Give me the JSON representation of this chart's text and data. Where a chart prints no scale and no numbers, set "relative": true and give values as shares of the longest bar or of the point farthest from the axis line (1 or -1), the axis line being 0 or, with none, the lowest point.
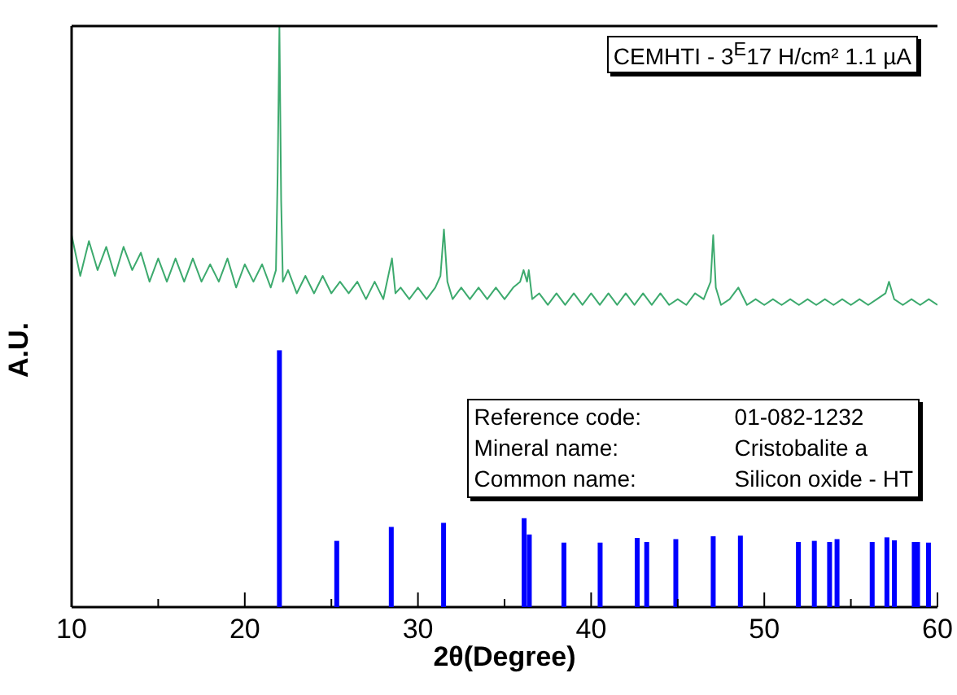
{
  "chart_data": {
    "type": "line",
    "relative": true,
    "xlabel": "2θ(Degree)",
    "ylabel": "A.U.",
    "xlim": [
      10,
      60
    ],
    "xticks": [
      10,
      {
        "value": 15,
        "label": null
      },
      20,
      {
        "value": 25,
        "label": null
      },
      30,
      {
        "value": 35,
        "label": null
      },
      40,
      {
        "value": 45,
        "label": null
      },
      50,
      {
        "value": 55,
        "label": null
      },
      60
    ],
    "tick_labels": "x",
    "annotations": [
      "CEMHTI - 3$^{E}$17 H/cm² 1.1 µA",
      "Reference code:",
      "01-082-1232",
      "Mineral name:",
      "Cristobalite a",
      "Common name:",
      "Silicon oxide - HT"
    ],
    "series": [
      {
        "color": "#3daa6e",
        "x": [
          10,
          10.5,
          11,
          11.5,
          12,
          12.5,
          13,
          13.5,
          14,
          14.5,
          15,
          15.5,
          16,
          16.5,
          17,
          17.5,
          18,
          18.5,
          19,
          19.5,
          20,
          20.5,
          21,
          21.5,
          21.8,
          21.9,
          22.0,
          22.1,
          22.2,
          22.5,
          23,
          23.5,
          24,
          24.5,
          25,
          25.5,
          26,
          26.5,
          27,
          27.5,
          28,
          28.5,
          28.7,
          29,
          29.5,
          30,
          30.5,
          31,
          31.3,
          31.5,
          31.7,
          32,
          32.5,
          33,
          33.5,
          34,
          34.5,
          35,
          35.5,
          35.9,
          36.1,
          36.3,
          36.4,
          36.6,
          37,
          37.5,
          38,
          38.5,
          39,
          39.5,
          40,
          40.5,
          41,
          41.5,
          42,
          42.5,
          43,
          43.5,
          44,
          44.5,
          45,
          45.5,
          46,
          46.5,
          46.9,
          47.05,
          47.2,
          47.5,
          48,
          48.5,
          49,
          49.5,
          50,
          50.5,
          51,
          51.5,
          52,
          52.5,
          53,
          53.5,
          54,
          54.5,
          55,
          55.5,
          56,
          56.5,
          57,
          57.2,
          57.5,
          58,
          58.5,
          59,
          59.5,
          60
        ],
        "values": [
          0.64,
          0.57,
          0.63,
          0.58,
          0.62,
          0.57,
          0.62,
          0.58,
          0.61,
          0.56,
          0.6,
          0.56,
          0.6,
          0.56,
          0.6,
          0.56,
          0.59,
          0.56,
          0.6,
          0.55,
          0.59,
          0.56,
          0.59,
          0.55,
          0.58,
          0.75,
          1,
          0.7,
          0.56,
          0.58,
          0.54,
          0.57,
          0.54,
          0.57,
          0.54,
          0.56,
          0.54,
          0.56,
          0.53,
          0.56,
          0.53,
          0.6,
          0.54,
          0.55,
          0.53,
          0.55,
          0.53,
          0.55,
          0.57,
          0.65,
          0.56,
          0.53,
          0.55,
          0.53,
          0.55,
          0.53,
          0.55,
          0.53,
          0.55,
          0.56,
          0.58,
          0.56,
          0.58,
          0.53,
          0.54,
          0.52,
          0.54,
          0.52,
          0.54,
          0.52,
          0.54,
          0.52,
          0.54,
          0.52,
          0.54,
          0.52,
          0.54,
          0.52,
          0.54,
          0.52,
          0.53,
          0.52,
          0.54,
          0.53,
          0.56,
          0.64,
          0.55,
          0.52,
          0.53,
          0.55,
          0.52,
          0.53,
          0.52,
          0.53,
          0.52,
          0.53,
          0.52,
          0.53,
          0.52,
          0.53,
          0.52,
          0.53,
          0.52,
          0.53,
          0.52,
          0.53,
          0.54,
          0.56,
          0.53,
          0.52,
          0.53,
          0.52,
          0.53,
          0.52
        ]
      },
      {
        "type": "bar",
        "color": "#0000ff",
        "x": [
          22.0,
          25.31,
          28.46,
          31.48,
          36.13,
          36.43,
          38.43,
          40.52,
          42.66,
          43.21,
          44.89,
          47.05,
          48.62,
          51.97,
          52.89,
          53.77,
          54.2,
          56.23,
          57.08,
          57.51,
          58.66,
          58.85,
          59.48
        ],
        "values": [
          0.442,
          0.114,
          0.138,
          0.145,
          0.153,
          0.125,
          0.111,
          0.111,
          0.119,
          0.112,
          0.117,
          0.122,
          0.123,
          0.112,
          0.114,
          0.112,
          0.117,
          0.112,
          0.12,
          0.115,
          0.112,
          0.112,
          0.111
        ]
      }
    ]
  }
}
